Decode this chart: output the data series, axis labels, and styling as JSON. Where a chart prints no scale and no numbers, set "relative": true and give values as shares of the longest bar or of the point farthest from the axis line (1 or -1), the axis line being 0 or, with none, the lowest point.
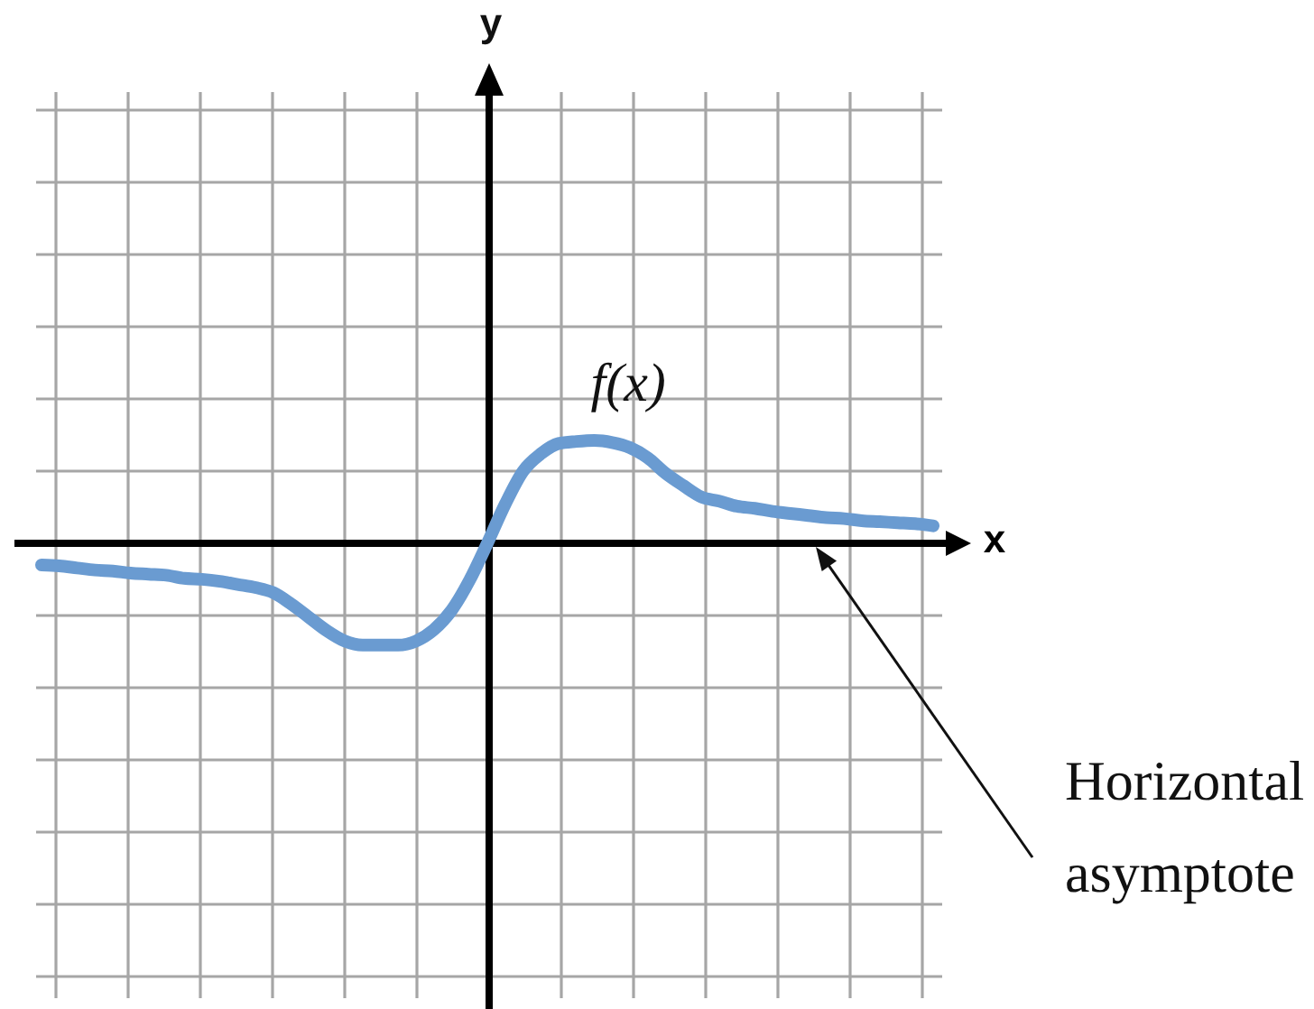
{
  "chart_data": {
    "type": "line",
    "relative": true,
    "xlabel": "x",
    "grid": true,
    "categories": [
      null,
      null,
      null,
      null,
      null,
      null,
      null,
      null,
      null,
      null,
      null,
      null,
      null,
      null,
      null,
      null,
      null,
      null,
      null,
      null,
      null,
      null,
      null,
      null,
      null,
      null,
      null,
      null,
      null,
      null,
      null,
      null,
      null,
      null,
      null,
      null,
      null,
      null,
      null,
      null,
      null,
      null,
      null,
      null,
      null,
      null,
      null,
      null,
      null,
      null,
      null
    ],
    "series": [
      {
        "name": "f(x)",
        "color": "#6a9bd1",
        "values": [
          -0.21,
          -0.22,
          -0.24,
          -0.26,
          -0.27,
          -0.29,
          -0.3,
          -0.31,
          -0.34,
          -0.35,
          -0.37,
          -0.4,
          -0.43,
          -0.48,
          -0.59,
          -0.72,
          -0.85,
          -0.95,
          -0.99,
          -0.99,
          -0.99,
          -0.95,
          -0.84,
          -0.65,
          -0.36,
          0,
          0.38,
          0.7,
          0.87,
          0.97,
          0.99,
          1,
          0.98,
          0.93,
          0.83,
          0.68,
          0.56,
          0.45,
          0.41,
          0.36,
          0.34,
          0.31,
          0.29,
          0.27,
          0.25,
          0.24,
          0.22,
          0.21,
          0.2,
          0.19,
          0.17
        ]
      }
    ],
    "annotations": [
      "y",
      "Horizontal asymptote"
    ]
  }
}
